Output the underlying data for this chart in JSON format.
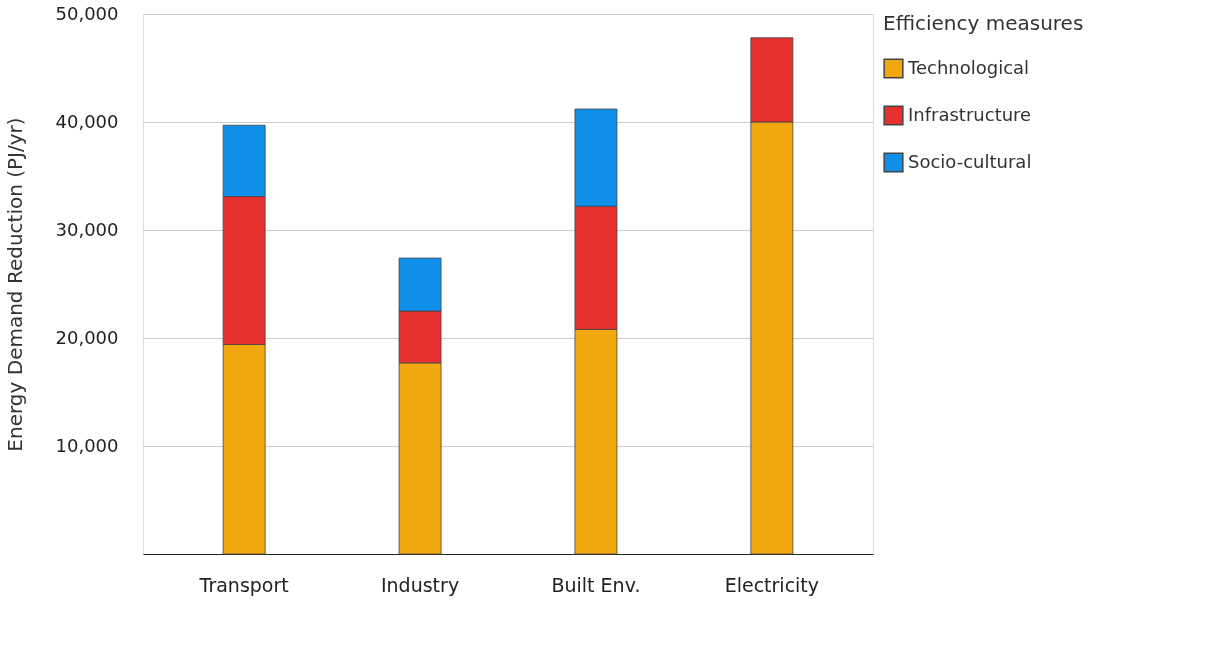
{
  "chart_data": {
    "type": "bar",
    "stacked": true,
    "ylabel": "Energy Demand  Reduction (PJ/yr)",
    "legend_title": "Efficiency measures",
    "categories": [
      "Transport",
      "Industry",
      "Built Env.",
      "Electricity"
    ],
    "series": [
      {
        "name": "Technological",
        "color": "#f0a80e",
        "values": [
          19400,
          17700,
          20800,
          40000
        ]
      },
      {
        "name": "Infrastructure",
        "color": "#e63030",
        "values": [
          13700,
          4800,
          11400,
          7800
        ]
      },
      {
        "name": "Socio-cultural",
        "color": "#0f8fe8",
        "values": [
          6600,
          4900,
          9000,
          null
        ]
      }
    ],
    "ylim": [
      0,
      50000
    ],
    "yticks": [
      {
        "value": 10000,
        "label": "10,000"
      },
      {
        "value": 20000,
        "label": "20,000"
      },
      {
        "value": 30000,
        "label": "30,000"
      },
      {
        "value": 40000,
        "label": "40,000"
      },
      {
        "value": 50000,
        "label": "50,000"
      }
    ],
    "grid": "y",
    "legend": "right"
  }
}
